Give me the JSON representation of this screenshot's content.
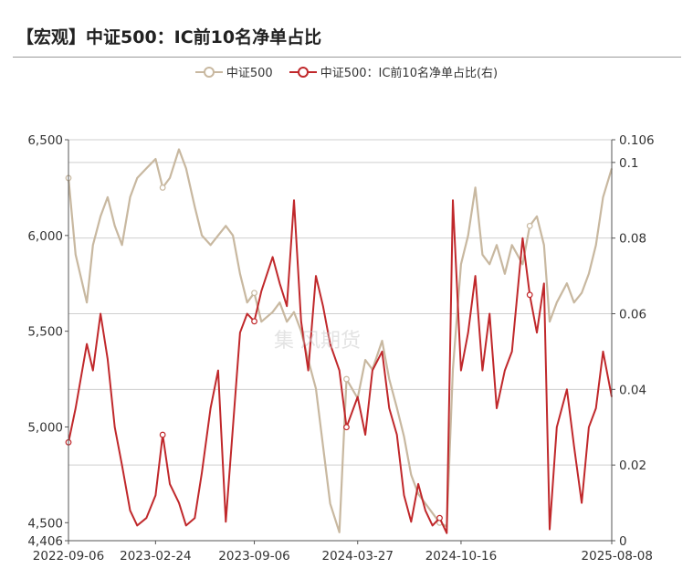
{
  "header": {
    "title": "【宏观】中证500：IC前10名净单占比"
  },
  "watermark": "集 风期货",
  "legend": [
    {
      "label": "中证500",
      "color": "#c8b8a0"
    },
    {
      "label": "中证500：IC前10名净单占比(右)",
      "color": "#c0282b"
    }
  ],
  "chart_data": {
    "type": "line",
    "title": "【宏观】中证500：IC前10名净单占比",
    "x_start": "2022-09-06",
    "x_end": "2025-08-08",
    "x_ticks": [
      "2022-09-06",
      "2023-02-24",
      "2023-09-06",
      "2024-03-27",
      "2024-10-16",
      "2025-08-08"
    ],
    "y_left": {
      "ticks": [
        "6,500",
        "6,000",
        "5,500",
        "5,000",
        "4,500",
        "4,406"
      ],
      "range": [
        4406,
        6500
      ]
    },
    "y_right": {
      "ticks": [
        "0.106",
        "0.1",
        "0.08",
        "0.06",
        "0.04",
        "0.02",
        "0"
      ],
      "range": [
        0,
        0.106
      ]
    },
    "grid": "horizontal",
    "legend_position": "top",
    "series": [
      {
        "name": "中证500",
        "axis": "left",
        "color": "#c8b8a0",
        "x": [
          "2022-09-06",
          "2022-09-20",
          "2022-10-12",
          "2022-10-24",
          "2022-11-08",
          "2022-11-22",
          "2022-12-06",
          "2022-12-20",
          "2023-01-05",
          "2023-01-19",
          "2023-02-06",
          "2023-02-24",
          "2023-03-10",
          "2023-03-24",
          "2023-04-11",
          "2023-04-25",
          "2023-05-12",
          "2023-05-26",
          "2023-06-12",
          "2023-06-27",
          "2023-07-12",
          "2023-07-26",
          "2023-08-09",
          "2023-08-23",
          "2023-09-06",
          "2023-09-20",
          "2023-10-12",
          "2023-10-26",
          "2023-11-09",
          "2023-11-23",
          "2023-12-07",
          "2023-12-21",
          "2024-01-05",
          "2024-01-19",
          "2024-02-02",
          "2024-02-20",
          "2024-03-05",
          "2024-03-27",
          "2024-04-11",
          "2024-04-25",
          "2024-05-14",
          "2024-05-28",
          "2024-06-12",
          "2024-06-26",
          "2024-07-10",
          "2024-07-24",
          "2024-08-07",
          "2024-08-21",
          "2024-09-04",
          "2024-09-18",
          "2024-09-30",
          "2024-10-16",
          "2024-10-30",
          "2024-11-13",
          "2024-11-27",
          "2024-12-11",
          "2024-12-25",
          "2025-01-10",
          "2025-01-24",
          "2025-02-14",
          "2025-02-28",
          "2025-03-14",
          "2025-03-28",
          "2025-04-08",
          "2025-04-22",
          "2025-05-12",
          "2025-05-26",
          "2025-06-10",
          "2025-06-24",
          "2025-07-08",
          "2025-07-22",
          "2025-08-08"
        ],
        "values": [
          6300,
          5900,
          5650,
          5950,
          6100,
          6200,
          6050,
          5950,
          6200,
          6300,
          6350,
          6400,
          6250,
          6300,
          6450,
          6350,
          6150,
          6000,
          5950,
          6000,
          6050,
          6000,
          5800,
          5650,
          5700,
          5550,
          5600,
          5650,
          5550,
          5600,
          5500,
          5350,
          5200,
          4900,
          4600,
          4450,
          5250,
          5150,
          5350,
          5300,
          5450,
          5250,
          5100,
          4950,
          4750,
          4650,
          4600,
          4550,
          4500,
          4480,
          5300,
          5850,
          6000,
          6250,
          5900,
          5850,
          5950,
          5800,
          5950,
          5850,
          6050,
          6100,
          5950,
          5550,
          5650,
          5750,
          5650,
          5700,
          5800,
          5950,
          6200,
          6350
        ]
      },
      {
        "name": "中证500：IC前10名净单占比(右)",
        "axis": "right",
        "color": "#c0282b",
        "x": [
          "2022-09-06",
          "2022-09-20",
          "2022-10-12",
          "2022-10-24",
          "2022-11-08",
          "2022-11-22",
          "2022-12-06",
          "2022-12-20",
          "2023-01-05",
          "2023-01-19",
          "2023-02-06",
          "2023-02-24",
          "2023-03-10",
          "2023-03-24",
          "2023-04-11",
          "2023-04-25",
          "2023-05-12",
          "2023-05-26",
          "2023-06-12",
          "2023-06-27",
          "2023-07-12",
          "2023-07-26",
          "2023-08-09",
          "2023-08-23",
          "2023-09-06",
          "2023-09-20",
          "2023-10-12",
          "2023-10-26",
          "2023-11-09",
          "2023-11-23",
          "2023-12-07",
          "2023-12-21",
          "2024-01-05",
          "2024-01-19",
          "2024-02-02",
          "2024-02-20",
          "2024-03-05",
          "2024-03-27",
          "2024-04-11",
          "2024-04-25",
          "2024-05-14",
          "2024-05-28",
          "2024-06-12",
          "2024-06-26",
          "2024-07-10",
          "2024-07-24",
          "2024-08-07",
          "2024-08-21",
          "2024-09-04",
          "2024-09-18",
          "2024-09-30",
          "2024-10-16",
          "2024-10-30",
          "2024-11-13",
          "2024-11-27",
          "2024-12-11",
          "2024-12-25",
          "2025-01-10",
          "2025-01-24",
          "2025-02-14",
          "2025-02-28",
          "2025-03-14",
          "2025-03-28",
          "2025-04-08",
          "2025-04-22",
          "2025-05-12",
          "2025-05-26",
          "2025-06-10",
          "2025-06-24",
          "2025-07-08",
          "2025-07-22",
          "2025-08-08"
        ],
        "values": [
          0.026,
          0.035,
          0.052,
          0.045,
          0.06,
          0.048,
          0.03,
          0.02,
          0.008,
          0.004,
          0.006,
          0.012,
          0.028,
          0.015,
          0.01,
          0.004,
          0.006,
          0.018,
          0.035,
          0.045,
          0.005,
          0.03,
          0.055,
          0.06,
          0.058,
          0.066,
          0.075,
          0.068,
          0.062,
          0.09,
          0.058,
          0.045,
          0.07,
          0.062,
          0.052,
          0.045,
          0.03,
          0.038,
          0.028,
          0.045,
          0.05,
          0.035,
          0.028,
          0.012,
          0.005,
          0.015,
          0.008,
          0.004,
          0.006,
          0.002,
          0.09,
          0.045,
          0.055,
          0.07,
          0.045,
          0.06,
          0.035,
          0.045,
          0.05,
          0.08,
          0.065,
          0.055,
          0.068,
          0.003,
          0.03,
          0.04,
          0.025,
          0.01,
          0.03,
          0.035,
          0.05,
          0.038
        ]
      }
    ]
  }
}
